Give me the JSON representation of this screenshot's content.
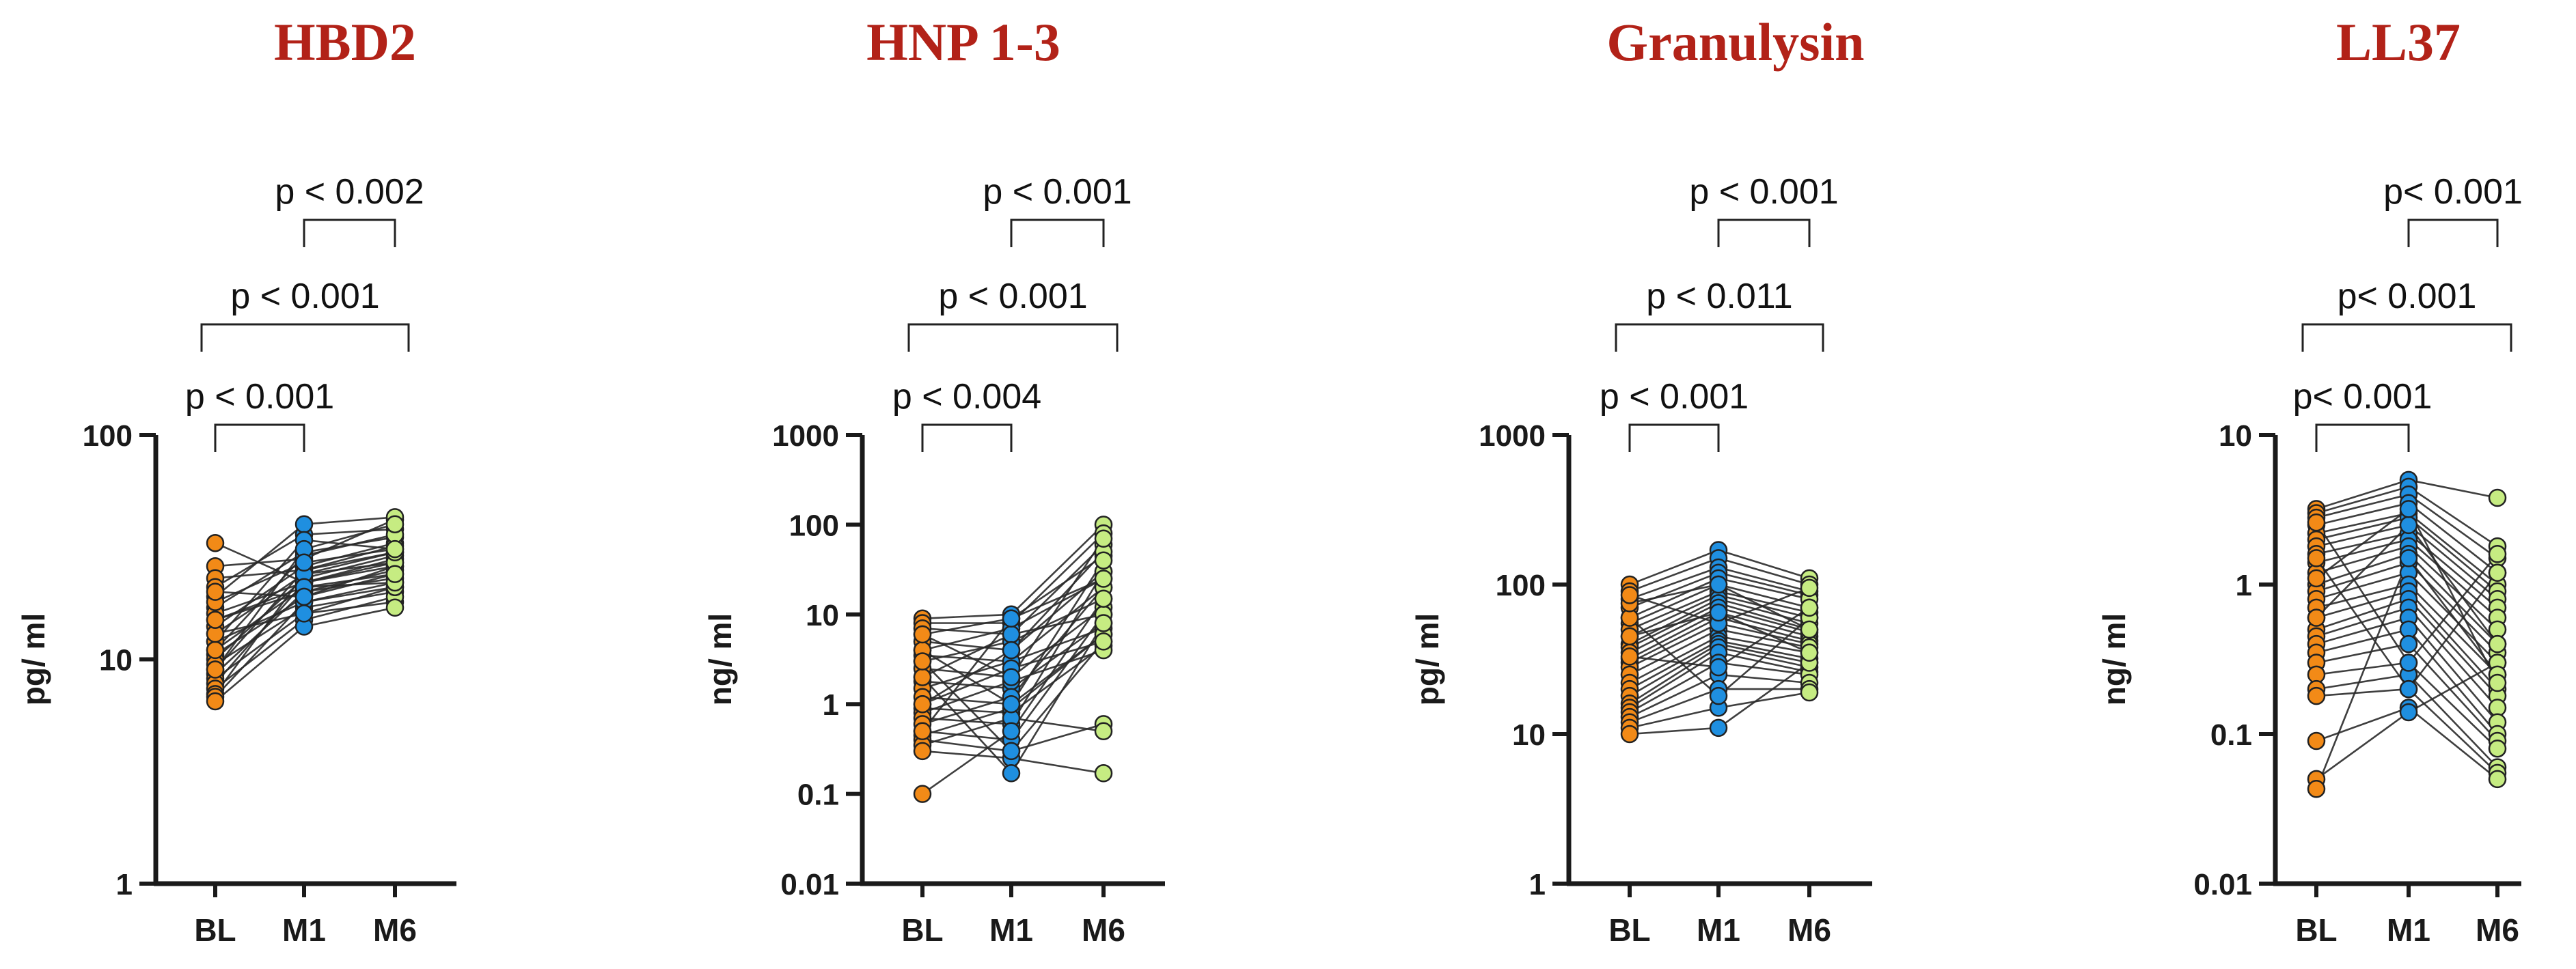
{
  "figure_colors": {
    "BL": "#f28a17",
    "M1": "#1f8fe0",
    "M6": "#c6ec82",
    "lines": "#2a2a2a",
    "title": "#b22218",
    "axis": "#1a1a1a"
  },
  "chart_data": [
    {
      "type": "scatter",
      "title": "HBD2",
      "ylabel": "pg/ ml",
      "yscale": "log",
      "ylim": [
        1,
        100
      ],
      "yticks": [
        "1",
        "10",
        "100"
      ],
      "categories": [
        "BL",
        "M1",
        "M6"
      ],
      "comparisons": [
        {
          "from": "BL",
          "to": "M1",
          "label": "p < 0.001"
        },
        {
          "from": "BL",
          "to": "M6",
          "label": "p < 0.001"
        },
        {
          "from": "M1",
          "to": "M6",
          "label": "p < 0.002"
        }
      ],
      "paired_points": [
        [
          33,
          22,
          26
        ],
        [
          26,
          28,
          42
        ],
        [
          23,
          25,
          30
        ],
        [
          21,
          36,
          38
        ],
        [
          19,
          40,
          43
        ],
        [
          17,
          30,
          35
        ],
        [
          16,
          22,
          28
        ],
        [
          15,
          20,
          25
        ],
        [
          14,
          26,
          33
        ],
        [
          13,
          24,
          27
        ],
        [
          12,
          18,
          22
        ],
        [
          12,
          34,
          31
        ],
        [
          11,
          21,
          24
        ],
        [
          10.5,
          19,
          26
        ],
        [
          10,
          23,
          29
        ],
        [
          9.5,
          17,
          20
        ],
        [
          9,
          25,
          32
        ],
        [
          8.6,
          20,
          23
        ],
        [
          8.2,
          16,
          18
        ],
        [
          7.8,
          22,
          27
        ],
        [
          7.4,
          15,
          19
        ],
        [
          7,
          24,
          30
        ],
        [
          6.8,
          18,
          21
        ],
        [
          6.5,
          14,
          17
        ],
        [
          11,
          29,
          36
        ],
        [
          13,
          16,
          21
        ],
        [
          9,
          31,
          40
        ],
        [
          15,
          21,
          22
        ],
        [
          18,
          27,
          31
        ],
        [
          20,
          19,
          24
        ]
      ]
    },
    {
      "type": "scatter",
      "title": "HNP 1-3",
      "ylabel": "ng/ ml",
      "yscale": "log",
      "ylim": [
        0.01,
        1000
      ],
      "yticks": [
        "0.01",
        "0.1",
        "1",
        "10",
        "100",
        "1000"
      ],
      "categories": [
        "BL",
        "M1",
        "M6"
      ],
      "comparisons": [
        {
          "from": "BL",
          "to": "M1",
          "label": "p < 0.004"
        },
        {
          "from": "BL",
          "to": "M6",
          "label": "p < 0.001"
        },
        {
          "from": "M1",
          "to": "M6",
          "label": "p < 0.001"
        }
      ],
      "paired_points": [
        [
          9,
          10,
          100
        ],
        [
          8,
          8,
          80
        ],
        [
          7,
          6,
          60
        ],
        [
          6,
          9,
          45
        ],
        [
          5,
          4,
          30
        ],
        [
          4,
          7,
          25
        ],
        [
          3.5,
          3,
          20
        ],
        [
          3,
          5,
          15
        ],
        [
          2.5,
          2,
          12
        ],
        [
          2,
          6,
          10
        ],
        [
          1.8,
          1.5,
          8
        ],
        [
          1.5,
          3,
          7
        ],
        [
          1.2,
          1,
          6
        ],
        [
          1,
          2.5,
          5
        ],
        [
          0.9,
          0.8,
          4.5
        ],
        [
          0.8,
          1.8,
          4
        ],
        [
          0.7,
          0.6,
          30
        ],
        [
          0.6,
          1.2,
          20
        ],
        [
          0.5,
          0.4,
          10
        ],
        [
          0.45,
          0.9,
          6
        ],
        [
          0.4,
          0.3,
          0.6
        ],
        [
          0.35,
          0.7,
          0.5
        ],
        [
          0.3,
          0.25,
          0.17
        ],
        [
          0.1,
          0.5,
          15
        ],
        [
          2,
          0.17,
          8
        ],
        [
          1,
          4,
          50
        ],
        [
          4,
          1,
          40
        ],
        [
          6,
          2,
          70
        ],
        [
          0.5,
          9,
          25
        ],
        [
          3,
          0.3,
          5
        ]
      ]
    },
    {
      "type": "scatter",
      "title": "Granulysin",
      "ylabel": "pg/ ml",
      "yscale": "log",
      "ylim": [
        1,
        1000
      ],
      "yticks": [
        "1",
        "10",
        "100",
        "1000"
      ],
      "categories": [
        "BL",
        "M1",
        "M6"
      ],
      "comparisons": [
        {
          "from": "BL",
          "to": "M1",
          "label": "p < 0.001"
        },
        {
          "from": "BL",
          "to": "M6",
          "label": "p < 0.011"
        },
        {
          "from": "M1",
          "to": "M6",
          "label": "p < 0.001"
        }
      ],
      "paired_points": [
        [
          100,
          170,
          110
        ],
        [
          90,
          150,
          100
        ],
        [
          80,
          130,
          90
        ],
        [
          70,
          120,
          85
        ],
        [
          60,
          110,
          80
        ],
        [
          55,
          100,
          70
        ],
        [
          50,
          90,
          65
        ],
        [
          45,
          85,
          60
        ],
        [
          40,
          80,
          55
        ],
        [
          38,
          75,
          50
        ],
        [
          35,
          70,
          48
        ],
        [
          32,
          65,
          45
        ],
        [
          30,
          60,
          42
        ],
        [
          28,
          55,
          40
        ],
        [
          25,
          50,
          38
        ],
        [
          22,
          45,
          35
        ],
        [
          20,
          42,
          32
        ],
        [
          18,
          40,
          30
        ],
        [
          16,
          38,
          28
        ],
        [
          15,
          35,
          26
        ],
        [
          14,
          30,
          25
        ],
        [
          13,
          25,
          22
        ],
        [
          12,
          20,
          20
        ],
        [
          11,
          15,
          19
        ],
        [
          10,
          11,
          30
        ],
        [
          60,
          18,
          60
        ],
        [
          75,
          100,
          50
        ],
        [
          85,
          55,
          95
        ],
        [
          33,
          28,
          70
        ],
        [
          45,
          65,
          35
        ]
      ]
    },
    {
      "type": "scatter",
      "title": "LL37",
      "ylabel": "ng/ ml",
      "yscale": "log",
      "ylim": [
        0.01,
        10
      ],
      "yticks": [
        "0.01",
        "0.1",
        "1",
        "10"
      ],
      "categories": [
        "BL",
        "M1",
        "M6"
      ],
      "comparisons": [
        {
          "from": "BL",
          "to": "M1",
          "label": "p< 0.001"
        },
        {
          "from": "BL",
          "to": "M6",
          "label": "p< 0.001"
        },
        {
          "from": "M1",
          "to": "M6",
          "label": "p< 0.001"
        }
      ],
      "paired_points": [
        [
          3.2,
          5,
          3.8
        ],
        [
          3,
          4.5,
          1.8
        ],
        [
          2.8,
          4,
          1.5
        ],
        [
          2.5,
          3.5,
          1.2
        ],
        [
          2.2,
          3,
          1
        ],
        [
          2,
          2.8,
          0.9
        ],
        [
          1.8,
          2.5,
          0.8
        ],
        [
          1.6,
          2.2,
          0.7
        ],
        [
          1.4,
          2,
          0.6
        ],
        [
          1.2,
          1.8,
          0.5
        ],
        [
          1,
          1.6,
          0.4
        ],
        [
          0.9,
          1.4,
          0.35
        ],
        [
          0.8,
          1.2,
          0.3
        ],
        [
          0.7,
          1,
          0.25
        ],
        [
          0.6,
          0.9,
          0.2
        ],
        [
          0.5,
          0.8,
          0.18
        ],
        [
          0.45,
          0.7,
          0.15
        ],
        [
          0.4,
          0.6,
          0.12
        ],
        [
          0.35,
          0.5,
          0.1
        ],
        [
          0.3,
          0.4,
          0.09
        ],
        [
          0.25,
          0.3,
          0.08
        ],
        [
          0.2,
          0.25,
          0.06
        ],
        [
          0.18,
          0.2,
          0.055
        ],
        [
          0.09,
          0.15,
          0.05
        ],
        [
          0.05,
          0.14,
          0.3
        ],
        [
          0.043,
          1.5,
          0.25
        ],
        [
          1.5,
          0.2,
          1.2
        ],
        [
          0.6,
          2.5,
          0.4
        ],
        [
          2.6,
          0.3,
          1.6
        ],
        [
          1.1,
          3.2,
          0.22
        ]
      ]
    }
  ]
}
